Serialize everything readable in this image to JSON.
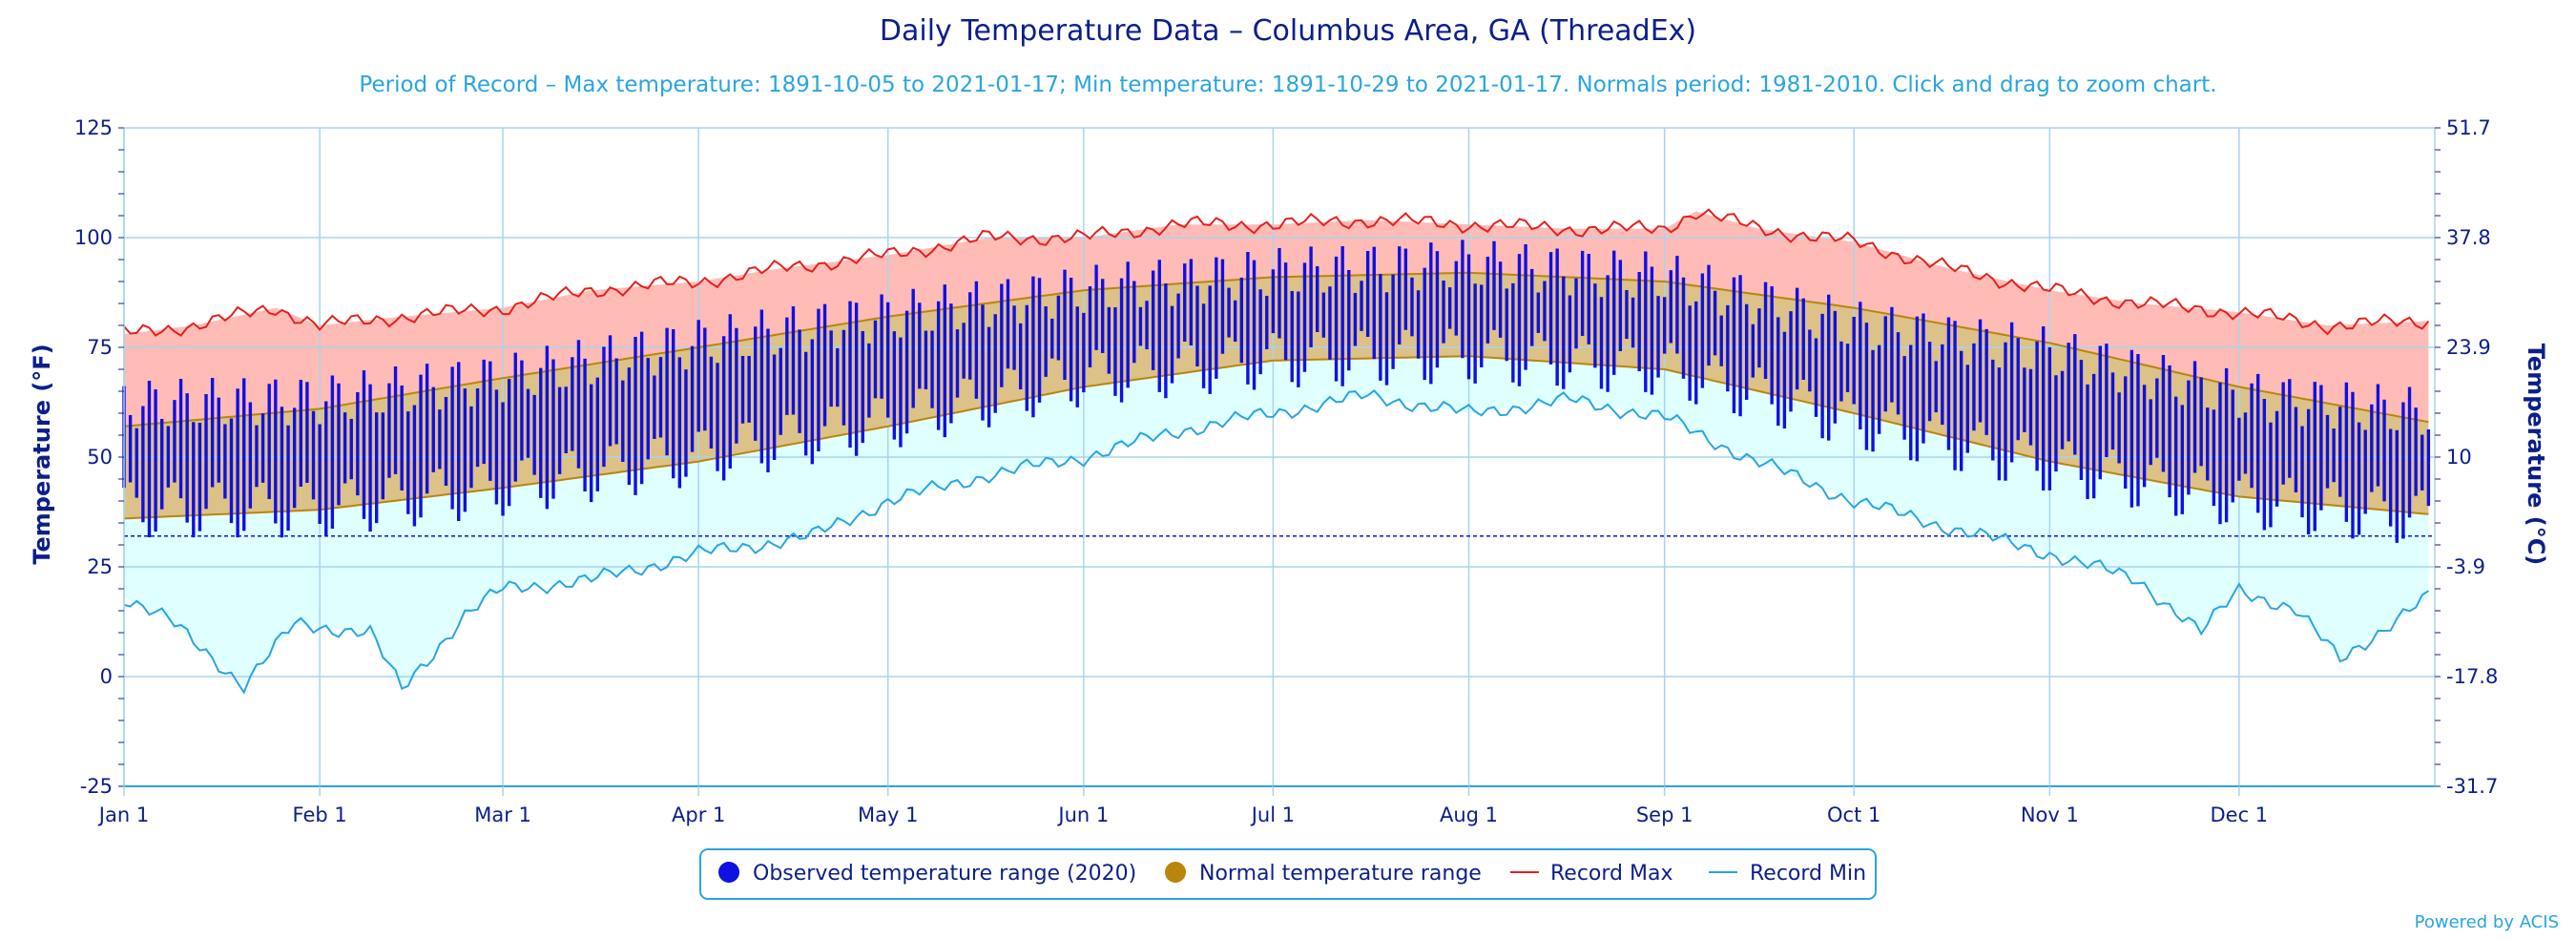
{
  "title": "Daily Temperature Data – Columbus Area, GA (ThreadEx)",
  "subtitle": "Period of Record – Max temperature: 1891-10-05 to 2021-01-17; Min temperature: 1891-10-29 to 2021-01-17. Normals period: 1981-2010. Click and drag to zoom chart.",
  "credit": "Powered by ACIS",
  "colors": {
    "observed": "#1010e0",
    "normal_fill": "#dcc189",
    "normal_line": "#b8860b",
    "record_max_line": "#e5201e",
    "record_max_fill": "#ffbcb7",
    "record_min_line": "#29a5df",
    "record_min_fill": "#e0ffff",
    "grid": "#a8d4ee",
    "axis_text": "#0b1f8a",
    "freezing_line": "#1515c8"
  },
  "chart_data": {
    "type": "area",
    "xlabel": "",
    "ylabel": "Temperature (°F)",
    "ylabel_right": "Temperature (°C)",
    "ylim": [
      -25,
      125
    ],
    "yticks": [
      -25,
      0,
      25,
      50,
      75,
      100,
      125
    ],
    "yticks_right": [
      "-31.7",
      "-17.8",
      "-3.9",
      "10",
      "23.9",
      "37.8",
      "51.7"
    ],
    "x_tick_labels": [
      "Jan 1",
      "Feb 1",
      "Mar 1",
      "Apr 1",
      "May 1",
      "Jun 1",
      "Jul 1",
      "Aug 1",
      "Sep 1",
      "Oct 1",
      "Nov 1",
      "Dec 1"
    ],
    "x_tick_days": [
      1,
      32,
      61,
      92,
      122,
      153,
      183,
      214,
      245,
      275,
      306,
      336
    ],
    "days_in_year": 366,
    "grid": true,
    "legend_position": "bottom-center",
    "freezing_line_f": 32,
    "normal_max": [
      {
        "day": 1,
        "value": 57
      },
      {
        "day": 32,
        "value": 61
      },
      {
        "day": 61,
        "value": 68
      },
      {
        "day": 92,
        "value": 75
      },
      {
        "day": 122,
        "value": 82
      },
      {
        "day": 153,
        "value": 88
      },
      {
        "day": 183,
        "value": 91
      },
      {
        "day": 214,
        "value": 92
      },
      {
        "day": 245,
        "value": 90
      },
      {
        "day": 275,
        "value": 84
      },
      {
        "day": 306,
        "value": 76
      },
      {
        "day": 336,
        "value": 66
      },
      {
        "day": 366,
        "value": 58
      }
    ],
    "normal_min": [
      {
        "day": 1,
        "value": 36
      },
      {
        "day": 32,
        "value": 38
      },
      {
        "day": 61,
        "value": 43
      },
      {
        "day": 92,
        "value": 49
      },
      {
        "day": 122,
        "value": 57
      },
      {
        "day": 153,
        "value": 66
      },
      {
        "day": 183,
        "value": 72
      },
      {
        "day": 214,
        "value": 73
      },
      {
        "day": 245,
        "value": 70
      },
      {
        "day": 275,
        "value": 60
      },
      {
        "day": 306,
        "value": 49
      },
      {
        "day": 336,
        "value": 41
      },
      {
        "day": 366,
        "value": 37
      }
    ],
    "record_max": [
      {
        "day": 1,
        "value": 78
      },
      {
        "day": 12,
        "value": 80
      },
      {
        "day": 25,
        "value": 84
      },
      {
        "day": 32,
        "value": 80
      },
      {
        "day": 45,
        "value": 82
      },
      {
        "day": 61,
        "value": 84
      },
      {
        "day": 75,
        "value": 88
      },
      {
        "day": 92,
        "value": 90
      },
      {
        "day": 105,
        "value": 93
      },
      {
        "day": 122,
        "value": 96
      },
      {
        "day": 138,
        "value": 100
      },
      {
        "day": 153,
        "value": 100
      },
      {
        "day": 168,
        "value": 103
      },
      {
        "day": 183,
        "value": 103
      },
      {
        "day": 198,
        "value": 104
      },
      {
        "day": 214,
        "value": 103
      },
      {
        "day": 230,
        "value": 102
      },
      {
        "day": 245,
        "value": 102
      },
      {
        "day": 250,
        "value": 106
      },
      {
        "day": 260,
        "value": 102
      },
      {
        "day": 275,
        "value": 99
      },
      {
        "day": 290,
        "value": 93
      },
      {
        "day": 306,
        "value": 88
      },
      {
        "day": 320,
        "value": 85
      },
      {
        "day": 336,
        "value": 83
      },
      {
        "day": 350,
        "value": 80
      },
      {
        "day": 366,
        "value": 81
      }
    ],
    "record_min": [
      {
        "day": 1,
        "value": 18
      },
      {
        "day": 8,
        "value": 13
      },
      {
        "day": 20,
        "value": -2
      },
      {
        "day": 28,
        "value": 12
      },
      {
        "day": 40,
        "value": 10
      },
      {
        "day": 45,
        "value": -3
      },
      {
        "day": 55,
        "value": 14
      },
      {
        "day": 61,
        "value": 20
      },
      {
        "day": 75,
        "value": 22
      },
      {
        "day": 92,
        "value": 28
      },
      {
        "day": 110,
        "value": 32
      },
      {
        "day": 122,
        "value": 40
      },
      {
        "day": 138,
        "value": 46
      },
      {
        "day": 153,
        "value": 50
      },
      {
        "day": 168,
        "value": 56
      },
      {
        "day": 183,
        "value": 60
      },
      {
        "day": 198,
        "value": 64
      },
      {
        "day": 214,
        "value": 60
      },
      {
        "day": 230,
        "value": 63
      },
      {
        "day": 245,
        "value": 59
      },
      {
        "day": 258,
        "value": 50
      },
      {
        "day": 275,
        "value": 40
      },
      {
        "day": 290,
        "value": 34
      },
      {
        "day": 306,
        "value": 28
      },
      {
        "day": 320,
        "value": 22
      },
      {
        "day": 330,
        "value": 10
      },
      {
        "day": 336,
        "value": 20
      },
      {
        "day": 345,
        "value": 15
      },
      {
        "day": 352,
        "value": 4
      },
      {
        "day": 360,
        "value": 12
      },
      {
        "day": 366,
        "value": 18
      }
    ],
    "observed_2020": {
      "name": "Observed temperature range (2020)",
      "low_points": [
        {
          "day": 1,
          "value": 38
        },
        {
          "day": 32,
          "value": 38
        },
        {
          "day": 61,
          "value": 43
        },
        {
          "day": 92,
          "value": 50
        },
        {
          "day": 122,
          "value": 58
        },
        {
          "day": 153,
          "value": 68
        },
        {
          "day": 183,
          "value": 72
        },
        {
          "day": 214,
          "value": 73
        },
        {
          "day": 245,
          "value": 70
        },
        {
          "day": 275,
          "value": 58
        },
        {
          "day": 306,
          "value": 48
        },
        {
          "day": 336,
          "value": 40
        },
        {
          "day": 366,
          "value": 36
        }
      ],
      "high_points": [
        {
          "day": 1,
          "value": 62
        },
        {
          "day": 32,
          "value": 63
        },
        {
          "day": 61,
          "value": 68
        },
        {
          "day": 92,
          "value": 76
        },
        {
          "day": 122,
          "value": 82
        },
        {
          "day": 153,
          "value": 88
        },
        {
          "day": 183,
          "value": 92
        },
        {
          "day": 214,
          "value": 94
        },
        {
          "day": 245,
          "value": 91
        },
        {
          "day": 275,
          "value": 80
        },
        {
          "day": 306,
          "value": 74
        },
        {
          "day": 336,
          "value": 64
        },
        {
          "day": 366,
          "value": 60
        }
      ],
      "amplitude": 8
    },
    "legend": [
      {
        "label": "Observed temperature range (2020)",
        "symbol": "dot",
        "color": "#1010e0"
      },
      {
        "label": "Normal temperature range",
        "symbol": "dot",
        "color": "#b8860b"
      },
      {
        "label": "Record Max",
        "symbol": "line",
        "color": "#e5201e"
      },
      {
        "label": "Record Min",
        "symbol": "line",
        "color": "#29a5df"
      }
    ]
  }
}
